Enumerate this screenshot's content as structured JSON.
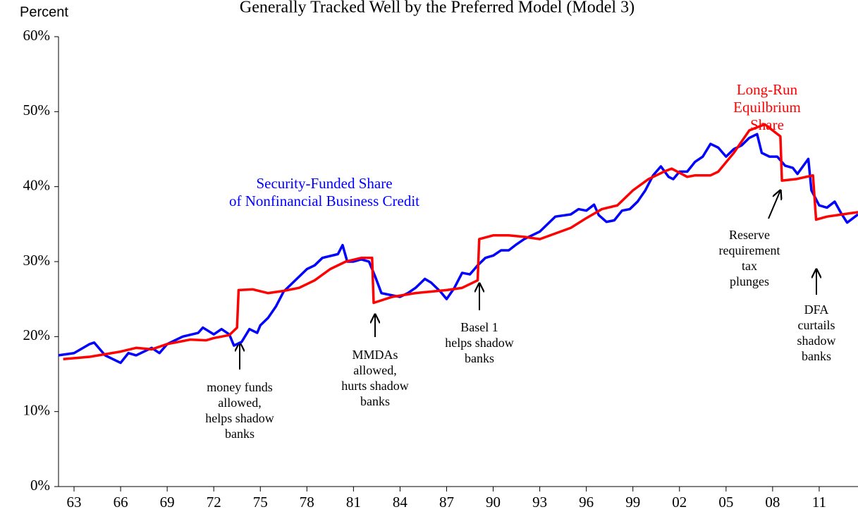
{
  "chart_data": {
    "type": "line",
    "title": "Generally Tracked Well by the Preferred Model (Model 3)",
    "y_label": "Percent",
    "xlim": [
      1962,
      2013.5
    ],
    "ylim": [
      0,
      60
    ],
    "yticks": [
      {
        "value": 0,
        "label": "0%"
      },
      {
        "value": 10,
        "label": "10%"
      },
      {
        "value": 20,
        "label": "20%"
      },
      {
        "value": 30,
        "label": "30%"
      },
      {
        "value": 40,
        "label": "40%"
      },
      {
        "value": 50,
        "label": "50%"
      },
      {
        "value": 60,
        "label": "60%"
      }
    ],
    "xticks": [
      {
        "value": 1963,
        "label": "63"
      },
      {
        "value": 1966,
        "label": "66"
      },
      {
        "value": 1969,
        "label": "69"
      },
      {
        "value": 1972,
        "label": "72"
      },
      {
        "value": 1975,
        "label": "75"
      },
      {
        "value": 1978,
        "label": "78"
      },
      {
        "value": 1981,
        "label": "81"
      },
      {
        "value": 1984,
        "label": "84"
      },
      {
        "value": 1987,
        "label": "87"
      },
      {
        "value": 1990,
        "label": "90"
      },
      {
        "value": 1993,
        "label": "93"
      },
      {
        "value": 1996,
        "label": "96"
      },
      {
        "value": 1999,
        "label": "99"
      },
      {
        "value": 2002,
        "label": "02"
      },
      {
        "value": 2005,
        "label": "05"
      },
      {
        "value": 2008,
        "label": "08"
      },
      {
        "value": 2011,
        "label": "11"
      }
    ],
    "series": [
      {
        "name": "Security-Funded Share\nof Nonfinancial Business Credit",
        "color": "#0000ff",
        "x": [
          1962,
          1963,
          1964,
          1964.3,
          1965,
          1966,
          1966.5,
          1967,
          1968,
          1968.5,
          1969,
          1970,
          1971,
          1971.3,
          1972,
          1972.5,
          1973,
          1973.3,
          1973.8,
          1974.3,
          1974.8,
          1975,
          1975.5,
          1976,
          1976.5,
          1977,
          1978,
          1978.5,
          1979,
          1980,
          1980.3,
          1980.6,
          1981,
          1981.5,
          1982,
          1982.4,
          1982.8,
          1983.5,
          1984,
          1984.5,
          1985,
          1985.6,
          1986,
          1986.6,
          1987,
          1987.5,
          1988,
          1988.5,
          1989,
          1989.5,
          1990,
          1990.5,
          1991,
          1991.5,
          1992,
          1993,
          1993.5,
          1994,
          1995,
          1995.5,
          1996,
          1996.5,
          1996.8,
          1997.3,
          1997.8,
          1998.3,
          1998.8,
          1999.3,
          1999.8,
          2000.3,
          2000.8,
          2001.3,
          2001.6,
          2002,
          2002.5,
          2003,
          2003.5,
          2004,
          2004.5,
          2005,
          2005.5,
          2006,
          2006.5,
          2007,
          2007.3,
          2007.8,
          2008.3,
          2008.8,
          2009.3,
          2009.6,
          2010.3,
          2010.5,
          2011,
          2011.5,
          2012,
          2012.4,
          2012.8,
          2013.5
        ],
        "values": [
          17.5,
          17.8,
          19,
          19.2,
          17.5,
          16.5,
          17.8,
          17.5,
          18.5,
          17.8,
          19,
          20,
          20.5,
          21.2,
          20.3,
          21,
          20.3,
          18.8,
          19.3,
          21,
          20.5,
          21.5,
          22.5,
          24,
          26,
          27,
          29,
          29.5,
          30.5,
          31,
          32.2,
          30,
          30,
          30.3,
          30,
          28,
          25.8,
          25.5,
          25.3,
          25.8,
          26.5,
          27.7,
          27.2,
          26,
          25,
          26.5,
          28.5,
          28.3,
          29.5,
          30.5,
          30.8,
          31.5,
          31.5,
          32.3,
          33,
          34,
          35,
          36,
          36.3,
          37,
          36.8,
          37.6,
          36.2,
          35.3,
          35.5,
          36.8,
          37,
          38,
          39.5,
          41.5,
          42.7,
          41.3,
          41,
          42,
          42,
          43.3,
          44,
          45.7,
          45.2,
          44,
          45,
          45.5,
          46.5,
          47,
          44.5,
          44,
          44,
          42.8,
          42.5,
          41.7,
          43.7,
          39.5,
          37.5,
          37.2,
          38,
          36.5,
          35.2,
          36.3
        ]
      },
      {
        "name": "Long-Run\nEquilbrium Share",
        "color": "#ff0000",
        "x": [
          1962.3,
          1964,
          1966,
          1967,
          1968,
          1969,
          1970.5,
          1971.5,
          1972,
          1973,
          1973.5,
          1973.6,
          1974.5,
          1975.5,
          1976.5,
          1977.5,
          1978.5,
          1979.5,
          1980.5,
          1981.5,
          1982.2,
          1982.3,
          1983.5,
          1985,
          1986,
          1987,
          1988,
          1989,
          1989.1,
          1990,
          1991,
          1992,
          1993,
          1995,
          1996,
          1997,
          1998,
          1999,
          2000,
          2001,
          2001.5,
          2002.5,
          2003,
          2004,
          2004.5,
          2005.5,
          2006.5,
          2007.5,
          2008,
          2008.5,
          2008.6,
          2009.5,
          2010.6,
          2010.8,
          2011.5,
          2012.5,
          2013.5
        ],
        "values": [
          17,
          17.3,
          18,
          18.5,
          18.3,
          19,
          19.6,
          19.5,
          19.8,
          20.2,
          21.2,
          26.2,
          26.3,
          25.8,
          26.1,
          26.5,
          27.5,
          29,
          30,
          30.5,
          30.5,
          24.5,
          25.3,
          25.8,
          26,
          26.2,
          26.5,
          27.5,
          33,
          33.5,
          33.5,
          33.3,
          33,
          34.5,
          35.8,
          37,
          37.5,
          39.5,
          41,
          42,
          42.4,
          41.3,
          41.5,
          41.5,
          42,
          44.5,
          47.5,
          48.3,
          47.5,
          46.7,
          40.8,
          41,
          41.5,
          35.6,
          36,
          36.3,
          36.6
        ]
      }
    ],
    "annotations": [
      "money funds\nallowed,\nhelps shadow\nbanks",
      "MMDAs\nallowed,\nhurts shadow\nbanks",
      "Basel 1\nhelps shadow\nbanks",
      "Reserve\nrequirement\ntax\nplunges",
      "DFA\ncurtails\nshadow\nbanks"
    ]
  }
}
